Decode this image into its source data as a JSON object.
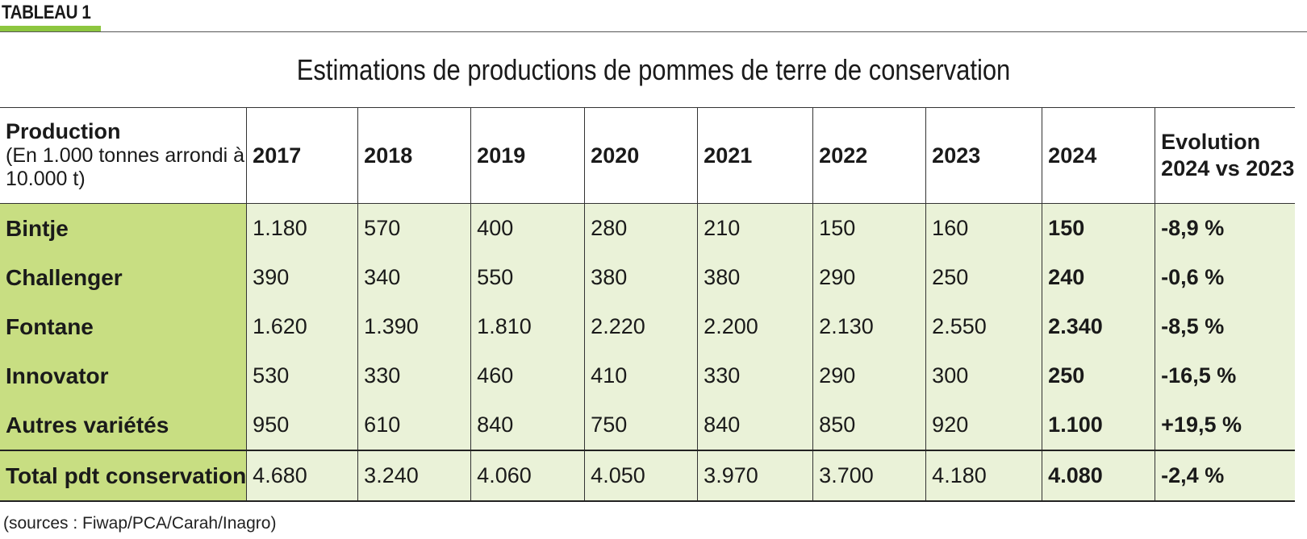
{
  "tag": "TABLEAU 1",
  "title": "Estimations de productions de pommes de terre de conservation",
  "header": {
    "row_label_bold": "Production",
    "row_label_note": "(En 1.000 tonnes arrondi à 10.000 t)",
    "years": [
      "2017",
      "2018",
      "2019",
      "2020",
      "2021",
      "2022",
      "2023",
      "2024"
    ],
    "evolution": "Evolution 2024 vs 2023"
  },
  "rows": [
    {
      "name": "Bintje",
      "values": [
        "1.180",
        "570",
        "400",
        "280",
        "210",
        "150",
        "160",
        "150"
      ],
      "evolution": "-8,9 %"
    },
    {
      "name": "Challenger",
      "values": [
        "390",
        "340",
        "550",
        "380",
        "380",
        "290",
        "250",
        "240"
      ],
      "evolution": "-0,6 %"
    },
    {
      "name": "Fontane",
      "values": [
        "1.620",
        "1.390",
        "1.810",
        "2.220",
        "2.200",
        "2.130",
        "2.550",
        "2.340"
      ],
      "evolution": "-8,5 %"
    },
    {
      "name": "Innovator",
      "values": [
        "530",
        "330",
        "460",
        "410",
        "330",
        "290",
        "300",
        "250"
      ],
      "evolution": "-16,5 %"
    },
    {
      "name": "Autres variétés",
      "values": [
        "950",
        "610",
        "840",
        "750",
        "840",
        "850",
        "920",
        "1.100"
      ],
      "evolution": "+19,5 %"
    },
    {
      "name": "Total pdt conservation",
      "values": [
        "4.680",
        "3.240",
        "4.060",
        "4.050",
        "3.970",
        "3.700",
        "4.180",
        "4.080"
      ],
      "evolution": "-2,4 %"
    }
  ],
  "sources": "(sources : Fiwap/PCA/Carah/Inagro)",
  "colors": {
    "accent_green": "#8dc63f",
    "variety_cell": "#c8de82",
    "data_cell": "#eaf2d8"
  }
}
